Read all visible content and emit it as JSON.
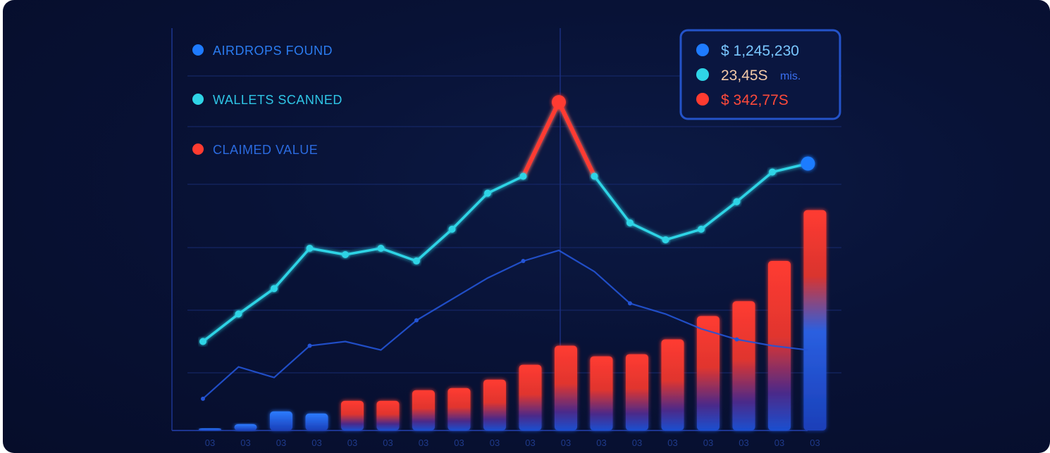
{
  "colors": {
    "airdrops": "#1e7bff",
    "wallets": "#2fd4e6",
    "claimed": "#ff3b30",
    "grid": "#17286a",
    "axis": "#1d3590",
    "panel_border": "#2453c9",
    "stat_wallets_text": "#f2c9a8",
    "stat_airdrops_text": "#7ac7ff",
    "stat_claimed_text": "#ff4a3a"
  },
  "stats_panel": {
    "airdrops_value": "$ 1,245,230",
    "wallets_value": "23,45S",
    "wallets_suffix": "mis.",
    "claimed_value": "$ 342,77S"
  },
  "chart_data": {
    "type": "bar",
    "legend": [
      {
        "key": "airdrops",
        "label": "AIRDROPS FOUND"
      },
      {
        "key": "wallets",
        "label": "WALLETS SCANNED"
      },
      {
        "key": "claimed",
        "label": "CLAIMED VALUE"
      }
    ],
    "legend_position": "top-left",
    "grid": true,
    "x_tick_labels": [
      "03",
      "03",
      "03",
      "03",
      "03",
      "03",
      "03",
      "03",
      "03",
      "03",
      "03",
      "03",
      "03",
      "03",
      "03",
      "03",
      "03",
      "03"
    ],
    "bars": {
      "name": "CLAIMED VALUE",
      "values": [
        1,
        3,
        9,
        8,
        14,
        14,
        19,
        20,
        24,
        31,
        40,
        35,
        36,
        43,
        54,
        61,
        80,
        104
      ]
    },
    "lines": [
      {
        "name": "WALLETS SCANNED",
        "values": [
          42,
          55,
          67,
          86,
          83,
          86,
          80,
          95,
          112,
          120,
          155,
          120,
          98,
          90,
          95,
          108,
          122,
          126
        ]
      },
      {
        "name": "AIRDROPS FOUND",
        "values": [
          15,
          30,
          25,
          40,
          42,
          38,
          52,
          62,
          72,
          80,
          85,
          75,
          60,
          55,
          48,
          43,
          40,
          38
        ]
      }
    ],
    "ylim": [
      0,
      170
    ]
  }
}
